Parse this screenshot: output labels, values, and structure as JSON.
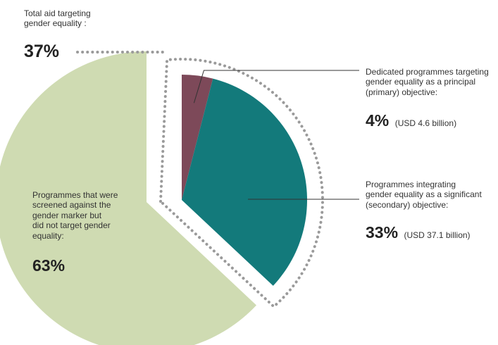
{
  "colors": {
    "not_targeted": "#cfdbb2",
    "principal": "#7d4959",
    "significant": "#137a7b",
    "dotted_outline": "#9a9a9a",
    "leader_line": "#333333"
  },
  "chart_data": {
    "type": "pie",
    "slices": [
      {
        "key": "not_targeted",
        "value": 63,
        "label": "Programmes that were\nscreened against the\ngender marker but\ndid not target gender\nequality:",
        "percent_label": "63%",
        "amount": ""
      },
      {
        "key": "principal",
        "value": 4,
        "label": "Dedicated programmes targeting\ngender equality as a principal\n(primary) objective:",
        "percent_label": "4%",
        "amount": "(USD 4.6 billion)"
      },
      {
        "key": "significant",
        "value": 33,
        "label": "Programmes integrating\ngender equality as a significant\n(secondary) objective:",
        "percent_label": "33%",
        "amount": "(USD 37.1 billion)"
      }
    ],
    "total": {
      "label": "Total aid targeting\ngender equality :",
      "percent_label": "37%",
      "value": 37
    }
  }
}
